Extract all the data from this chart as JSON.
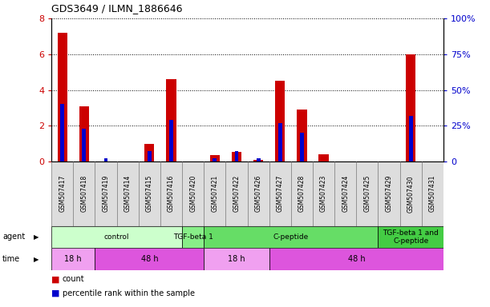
{
  "title": "GDS3649 / ILMN_1886646",
  "samples": [
    "GSM507417",
    "GSM507418",
    "GSM507419",
    "GSM507414",
    "GSM507415",
    "GSM507416",
    "GSM507420",
    "GSM507421",
    "GSM507422",
    "GSM507426",
    "GSM507427",
    "GSM507428",
    "GSM507423",
    "GSM507424",
    "GSM507425",
    "GSM507429",
    "GSM507430",
    "GSM507431"
  ],
  "count_values": [
    7.2,
    3.1,
    0.0,
    0.0,
    1.0,
    4.6,
    0.0,
    0.35,
    0.55,
    0.1,
    4.5,
    2.9,
    0.4,
    0.0,
    0.0,
    0.0,
    6.0,
    0.0
  ],
  "percentile_values": [
    40,
    23,
    2.5,
    0,
    7,
    29,
    0,
    2,
    7,
    2.5,
    27,
    20,
    0,
    0,
    0,
    0,
    32,
    0
  ],
  "ylim": [
    0,
    8
  ],
  "y2lim": [
    0,
    100
  ],
  "yticks": [
    0,
    2,
    4,
    6,
    8
  ],
  "y2ticks": [
    0,
    25,
    50,
    75,
    100
  ],
  "y2ticklabels": [
    "0",
    "25%",
    "50%",
    "75%",
    "100%"
  ],
  "count_color": "#cc0000",
  "percentile_color": "#0000cc",
  "agent_groups": [
    {
      "label": "control",
      "start": 0,
      "end": 5,
      "color": "#ccffcc"
    },
    {
      "label": "TGF-beta 1",
      "start": 6,
      "end": 6,
      "color": "#88ee88"
    },
    {
      "label": "C-peptide",
      "start": 7,
      "end": 14,
      "color": "#66dd66"
    },
    {
      "label": "TGF-beta 1 and\nC-peptide",
      "start": 15,
      "end": 17,
      "color": "#44cc44"
    }
  ],
  "time_groups": [
    {
      "label": "18 h",
      "start": 0,
      "end": 1,
      "color": "#f0a0f0"
    },
    {
      "label": "48 h",
      "start": 2,
      "end": 6,
      "color": "#dd55dd"
    },
    {
      "label": "18 h",
      "start": 7,
      "end": 9,
      "color": "#f0a0f0"
    },
    {
      "label": "48 h",
      "start": 10,
      "end": 17,
      "color": "#dd55dd"
    }
  ],
  "tick_label_color_left": "#cc0000",
  "tick_label_color_right": "#0000cc"
}
